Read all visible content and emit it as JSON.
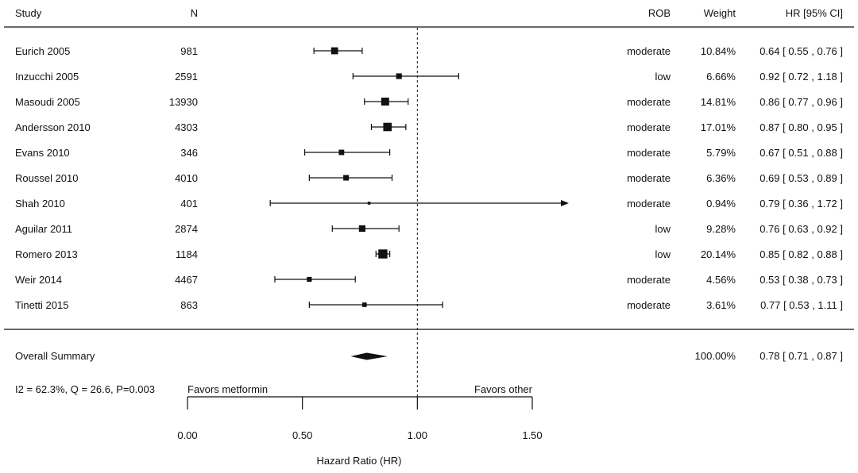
{
  "chart_data": {
    "type": "forest",
    "headers": {
      "study": "Study",
      "n": "N",
      "rob": "ROB",
      "weight": "Weight",
      "hr": "HR [95% CI]"
    },
    "studies": [
      {
        "study": "Eurich 2005",
        "n": "981",
        "rob": "moderate",
        "weight": "10.84%",
        "hr_text": "0.64 [ 0.55 , 0.76 ]",
        "hr": 0.64,
        "lo": 0.55,
        "hi": 0.76,
        "w": 10.84
      },
      {
        "study": "Inzucchi 2005",
        "n": "2591",
        "rob": "low",
        "weight": "6.66%",
        "hr_text": "0.92 [ 0.72 , 1.18 ]",
        "hr": 0.92,
        "lo": 0.72,
        "hi": 1.18,
        "w": 6.66
      },
      {
        "study": "Masoudi 2005",
        "n": "13930",
        "rob": "moderate",
        "weight": "14.81%",
        "hr_text": "0.86 [ 0.77 , 0.96 ]",
        "hr": 0.86,
        "lo": 0.77,
        "hi": 0.96,
        "w": 14.81
      },
      {
        "study": "Andersson 2010",
        "n": "4303",
        "rob": "moderate",
        "weight": "17.01%",
        "hr_text": "0.87 [ 0.80 , 0.95 ]",
        "hr": 0.87,
        "lo": 0.8,
        "hi": 0.95,
        "w": 17.01
      },
      {
        "study": "Evans 2010",
        "n": "346",
        "rob": "moderate",
        "weight": "5.79%",
        "hr_text": "0.67 [ 0.51 , 0.88 ]",
        "hr": 0.67,
        "lo": 0.51,
        "hi": 0.88,
        "w": 5.79
      },
      {
        "study": "Roussel 2010",
        "n": "4010",
        "rob": "moderate",
        "weight": "6.36%",
        "hr_text": "0.69 [ 0.53 , 0.89 ]",
        "hr": 0.69,
        "lo": 0.53,
        "hi": 0.89,
        "w": 6.36
      },
      {
        "study": "Shah 2010",
        "n": "401",
        "rob": "moderate",
        "weight": "0.94%",
        "hr_text": "0.79 [ 0.36 , 1.72 ]",
        "hr": 0.79,
        "lo": 0.36,
        "hi": 1.72,
        "w": 0.94
      },
      {
        "study": "Aguilar 2011",
        "n": "2874",
        "rob": "low",
        "weight": "9.28%",
        "hr_text": "0.76 [ 0.63 , 0.92 ]",
        "hr": 0.76,
        "lo": 0.63,
        "hi": 0.92,
        "w": 9.28
      },
      {
        "study": "Romero 2013",
        "n": "1184",
        "rob": "low",
        "weight": "20.14%",
        "hr_text": "0.85 [ 0.82 , 0.88 ]",
        "hr": 0.85,
        "lo": 0.82,
        "hi": 0.88,
        "w": 20.14
      },
      {
        "study": "Weir 2014",
        "n": "4467",
        "rob": "moderate",
        "weight": "4.56%",
        "hr_text": "0.53 [ 0.38 , 0.73 ]",
        "hr": 0.53,
        "lo": 0.38,
        "hi": 0.73,
        "w": 4.56
      },
      {
        "study": "Tinetti 2015",
        "n": "863",
        "rob": "moderate",
        "weight": "3.61%",
        "hr_text": "0.77 [ 0.53 , 1.11 ]",
        "hr": 0.77,
        "lo": 0.53,
        "hi": 1.11,
        "w": 3.61
      }
    ],
    "summary": {
      "label": "Overall Summary",
      "weight": "100.00%",
      "hr_text": "0.78 [ 0.71 , 0.87 ]",
      "hr": 0.78,
      "lo": 0.71,
      "hi": 0.87
    },
    "heterogeneity": "I2 = 62.3%, Q = 26.6, P=0.003",
    "favors_left": "Favors metformin",
    "favors_right": "Favors other",
    "xlabel": "Hazard Ratio (HR)",
    "xlim": [
      0,
      1.5
    ],
    "reference_line": 1.0,
    "xticks": [
      0,
      0.5,
      1.0,
      1.5
    ],
    "xtick_labels": [
      "0.00",
      "0.50",
      "1.00",
      "1.50"
    ]
  }
}
